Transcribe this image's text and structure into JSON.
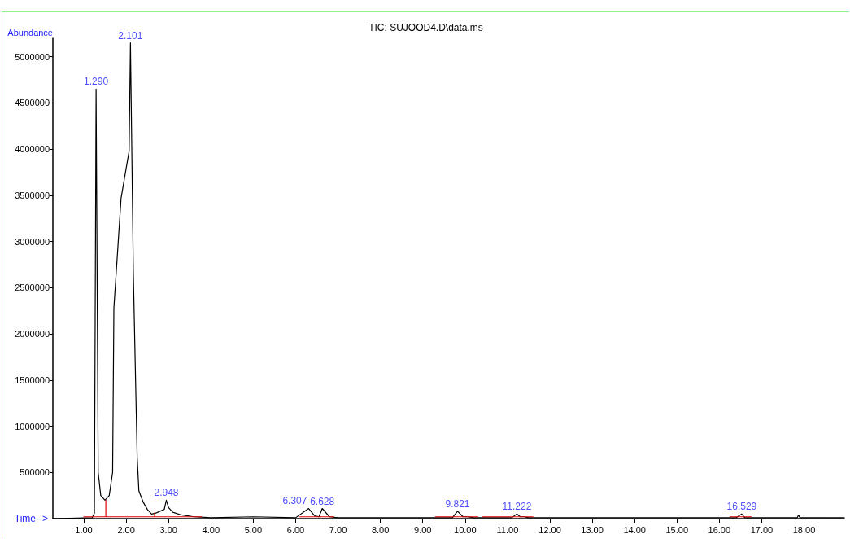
{
  "chart_data": {
    "type": "line",
    "title": "TIC: SUJOOD4.D\\data.ms",
    "xlabel": "Time-->",
    "ylabel": "Abundance",
    "xlim": [
      0.27,
      18.95
    ],
    "ylim": [
      0,
      5200000
    ],
    "xticks": [
      {
        "value": 1,
        "label": "1.00"
      },
      {
        "value": 2,
        "label": "2.00"
      },
      {
        "value": 3,
        "label": "3.00"
      },
      {
        "value": 4,
        "label": "4.00"
      },
      {
        "value": 5,
        "label": "5.00"
      },
      {
        "value": 6,
        "label": "6.00"
      },
      {
        "value": 7,
        "label": "7.00"
      },
      {
        "value": 8,
        "label": "8.00"
      },
      {
        "value": 9,
        "label": "9.00"
      },
      {
        "value": 10,
        "label": "10.00"
      },
      {
        "value": 11,
        "label": "11.00"
      },
      {
        "value": 12,
        "label": "12.00"
      },
      {
        "value": 13,
        "label": "13.00"
      },
      {
        "value": 14,
        "label": "14.00"
      },
      {
        "value": 15,
        "label": "15.00"
      },
      {
        "value": 16,
        "label": "16.00"
      },
      {
        "value": 17,
        "label": "17.00"
      },
      {
        "value": 18,
        "label": "18.00"
      }
    ],
    "yticks": [
      500000,
      1000000,
      1500000,
      2000000,
      2500000,
      3000000,
      3500000,
      4000000,
      4500000,
      5000000
    ],
    "grid": false,
    "marker": "none",
    "line_style": "solid",
    "series": [
      {
        "color": "#000000",
        "x": [
          0.27,
          1.2,
          1.25,
          1.29,
          1.34,
          1.4,
          1.5,
          1.6,
          1.68,
          1.71,
          1.88,
          2.07,
          2.101,
          2.17,
          2.26,
          2.3,
          2.4,
          2.5,
          2.6,
          2.7,
          2.8,
          2.9,
          2.948,
          3.0,
          3.1,
          3.3,
          3.6,
          4.0,
          5.0,
          6.0,
          6.307,
          6.45,
          6.55,
          6.628,
          6.8,
          7.0,
          9.7,
          9.821,
          9.95,
          10.05,
          10.2,
          11.1,
          11.222,
          11.3,
          11.4,
          11.5,
          16.4,
          16.529,
          16.6,
          17.84,
          17.87,
          17.9,
          18.95
        ],
        "values": [
          0,
          10000,
          60000,
          4650000,
          500000,
          250000,
          200000,
          250000,
          500000,
          2280000,
          3470000,
          3980000,
          5150000,
          2640000,
          660000,
          300000,
          180000,
          100000,
          50000,
          60000,
          80000,
          100000,
          200000,
          120000,
          70000,
          40000,
          20000,
          10000,
          20000,
          10000,
          110000,
          30000,
          20000,
          110000,
          20000,
          10000,
          10000,
          80000,
          20000,
          20000,
          10000,
          10000,
          50000,
          20000,
          20000,
          10000,
          10000,
          50000,
          10000,
          10000,
          40000,
          10000,
          10000
        ]
      },
      {
        "color": "#e00000",
        "x": [
          1.0,
          1.52,
          1.52,
          1.52,
          2.67,
          2.67,
          2.67,
          3.78,
          3.79,
          6.1,
          6.9,
          6.91,
          9.3,
          10.3,
          10.35,
          10.4,
          11.6,
          11.65,
          16.25,
          16.75
        ],
        "values": [
          20000,
          20000,
          200000,
          20000,
          20000,
          60000,
          20000,
          20000,
          null,
          20000,
          20000,
          null,
          20000,
          20000,
          null,
          20000,
          20000,
          null,
          20000,
          20000
        ]
      }
    ],
    "annotations": [
      {
        "text": "1.290",
        "x": 1.29,
        "y": 4650000
      },
      {
        "text": "2.101",
        "x": 2.101,
        "y": 5150000
      },
      {
        "text": "2.948",
        "x": 2.948,
        "y": 200000
      },
      {
        "text": "6.307",
        "x": 6.307,
        "y": 110000
      },
      {
        "text": "6.628",
        "x": 6.628,
        "y": 110000
      },
      {
        "text": "9.821",
        "x": 9.821,
        "y": 80000
      },
      {
        "text": "11.222",
        "x": 11.222,
        "y": 50000
      },
      {
        "text": "16.529",
        "x": 16.529,
        "y": 50000
      }
    ]
  }
}
